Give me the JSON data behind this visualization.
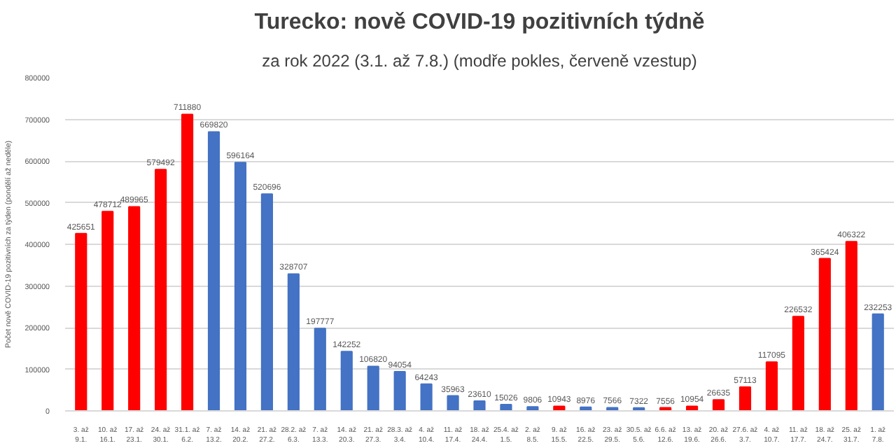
{
  "chart_data": {
    "type": "bar",
    "title": "Turecko: nově COVID-19 pozitivních týdně",
    "subtitle": "za rok 2022 (3.1. až 7.8.) (modře pokles, červeně vzestup)",
    "ylabel": "Počet nově COVID-19 pozitivních za týden (pondělí až neděle)",
    "categories": [
      "3. až\n9.1.",
      "10. až\n16.1.",
      "17. až\n23.1.",
      "24. až\n30.1.",
      "31.1. až\n6.2.",
      "7. až\n13.2.",
      "14. až\n20.2.",
      "21. až\n27.2.",
      "28.2. až\n6.3.",
      "7. až\n13.3.",
      "14. až\n20.3.",
      "21. až\n27.3.",
      "28.3. až\n3.4.",
      "4. až\n10.4.",
      "11. až\n17.4.",
      "18. až\n24.4.",
      "25.4. až\n1.5.",
      "2. až\n8.5.",
      "9. až\n15.5.",
      "16. až\n22.5.",
      "23. až\n29.5.",
      "30.5. až\n5.6.",
      "6.6. až\n12.6.",
      "13. až\n19.6.",
      "20. až\n26.6.",
      "27.6. až\n3.7.",
      "4. až\n10.7.",
      "11. až\n17.7.",
      "18. až\n24.7.",
      "25. až\n31.7.",
      "1. až\n7.8."
    ],
    "values": [
      425651,
      478712,
      489965,
      579492,
      711880,
      669820,
      596164,
      520696,
      328707,
      197777,
      142252,
      106820,
      94054,
      64243,
      35963,
      23610,
      15026,
      9806,
      10943,
      8976,
      7566,
      7322,
      7556,
      10954,
      26635,
      57113,
      117095,
      226532,
      365424,
      406322,
      232253
    ],
    "colors": [
      "#ff0000",
      "#ff0000",
      "#ff0000",
      "#ff0000",
      "#ff0000",
      "#4472c4",
      "#4472c4",
      "#4472c4",
      "#4472c4",
      "#4472c4",
      "#4472c4",
      "#4472c4",
      "#4472c4",
      "#4472c4",
      "#4472c4",
      "#4472c4",
      "#4472c4",
      "#4472c4",
      "#ff0000",
      "#4472c4",
      "#4472c4",
      "#4472c4",
      "#ff0000",
      "#ff0000",
      "#ff0000",
      "#ff0000",
      "#ff0000",
      "#ff0000",
      "#ff0000",
      "#ff0000",
      "#4472c4"
    ],
    "ylim": [
      0,
      800000
    ],
    "yticks": [
      0,
      100000,
      200000,
      300000,
      400000,
      500000,
      600000,
      700000,
      800000
    ],
    "grid": "y",
    "data_labels": true
  }
}
